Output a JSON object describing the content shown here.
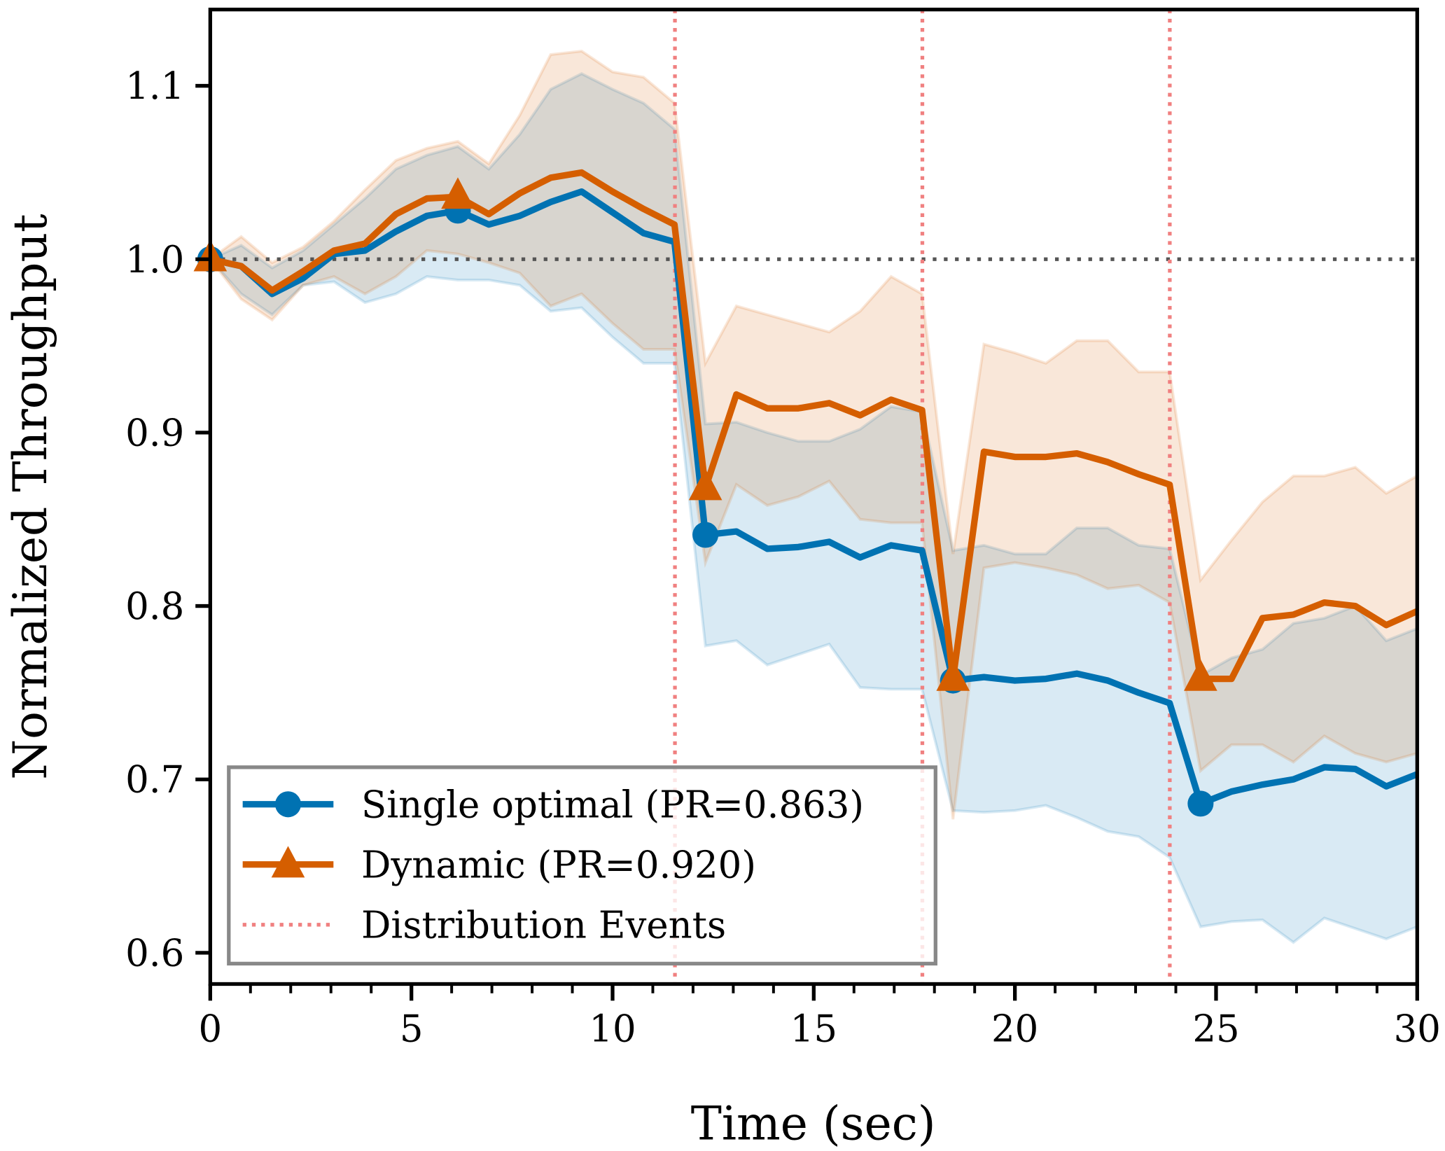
{
  "chart_data": {
    "type": "line",
    "title": "",
    "xlabel": "Time (sec)",
    "ylabel": "Normalized Throughput",
    "xlim": [
      0,
      30
    ],
    "ylim": [
      0.582,
      1.144
    ],
    "xticks": [
      "0",
      "5",
      "10",
      "15",
      "20",
      "25",
      "30"
    ],
    "yticks": [
      "0.6",
      "0.7",
      "0.8",
      "0.9",
      "1.0",
      "1.1"
    ],
    "xtick_values": [
      0,
      5,
      10,
      15,
      20,
      25,
      30
    ],
    "ytick_values": [
      0.6,
      0.7,
      0.8,
      0.9,
      1.0,
      1.1
    ],
    "grid": false,
    "legend_position": "lower-left",
    "reference_line": {
      "y": 1.0,
      "color": "#555555",
      "style": "dotted"
    },
    "events": {
      "name": "Distribution Events",
      "x": [
        11.55,
        17.7,
        23.85
      ],
      "color": "#f08080",
      "style": "dotted"
    },
    "x_start": 0,
    "x_end": 30,
    "n_points": 40,
    "series": [
      {
        "name": "Single optimal (PR=0.863)",
        "color": "#0072b2",
        "marker": "circle",
        "values": [
          1.0,
          0.996,
          0.98,
          0.989,
          1.003,
          1.005,
          1.016,
          1.025,
          1.028,
          1.02,
          1.025,
          1.033,
          1.039,
          1.027,
          1.015,
          1.01,
          0.841,
          0.843,
          0.833,
          0.834,
          0.837,
          0.828,
          0.835,
          0.832,
          0.757,
          0.759,
          0.757,
          0.758,
          0.761,
          0.757,
          0.75,
          0.744,
          0.686,
          0.693,
          0.697,
          0.7,
          0.707,
          0.706,
          0.696,
          0.703
        ],
        "upper": [
          1.0,
          1.008,
          0.995,
          1.005,
          1.02,
          1.035,
          1.052,
          1.06,
          1.065,
          1.052,
          1.072,
          1.098,
          1.107,
          1.098,
          1.09,
          1.075,
          0.905,
          0.906,
          0.9,
          0.895,
          0.895,
          0.902,
          0.915,
          0.912,
          0.832,
          0.835,
          0.83,
          0.83,
          0.845,
          0.845,
          0.835,
          0.833,
          0.76,
          0.77,
          0.775,
          0.79,
          0.793,
          0.8,
          0.78,
          0.787
        ],
        "lower": [
          1.0,
          0.98,
          0.968,
          0.985,
          0.987,
          0.975,
          0.98,
          0.99,
          0.988,
          0.988,
          0.985,
          0.97,
          0.972,
          0.955,
          0.94,
          0.94,
          0.777,
          0.78,
          0.766,
          0.772,
          0.778,
          0.753,
          0.752,
          0.752,
          0.682,
          0.681,
          0.682,
          0.685,
          0.678,
          0.67,
          0.667,
          0.655,
          0.615,
          0.618,
          0.619,
          0.606,
          0.62,
          0.614,
          0.608,
          0.615
        ]
      },
      {
        "name": "Dynamic (PR=0.920)",
        "color": "#d55e00",
        "marker": "triangle",
        "values": [
          1.0,
          0.996,
          0.982,
          0.993,
          1.005,
          1.009,
          1.026,
          1.035,
          1.036,
          1.026,
          1.038,
          1.047,
          1.05,
          1.039,
          1.029,
          1.02,
          0.868,
          0.922,
          0.914,
          0.914,
          0.917,
          0.91,
          0.919,
          0.913,
          0.758,
          0.889,
          0.886,
          0.886,
          0.888,
          0.883,
          0.876,
          0.87,
          0.758,
          0.758,
          0.793,
          0.795,
          0.802,
          0.8,
          0.789,
          0.797
        ],
        "upper": [
          1.0,
          1.013,
          0.998,
          1.007,
          1.022,
          1.04,
          1.057,
          1.064,
          1.068,
          1.055,
          1.083,
          1.118,
          1.12,
          1.108,
          1.105,
          1.09,
          0.94,
          0.973,
          0.968,
          0.963,
          0.958,
          0.97,
          0.99,
          0.98,
          0.83,
          0.951,
          0.946,
          0.94,
          0.953,
          0.953,
          0.935,
          0.935,
          0.815,
          0.838,
          0.86,
          0.875,
          0.875,
          0.88,
          0.865,
          0.875
        ],
        "lower": [
          1.0,
          0.977,
          0.965,
          0.985,
          0.99,
          0.98,
          0.99,
          1.005,
          1.003,
          0.998,
          0.992,
          0.973,
          0.98,
          0.963,
          0.948,
          0.948,
          0.825,
          0.87,
          0.858,
          0.863,
          0.872,
          0.85,
          0.848,
          0.848,
          0.677,
          0.822,
          0.825,
          0.822,
          0.818,
          0.81,
          0.812,
          0.802,
          0.705,
          0.72,
          0.72,
          0.71,
          0.725,
          0.715,
          0.71,
          0.715
        ]
      }
    ]
  }
}
